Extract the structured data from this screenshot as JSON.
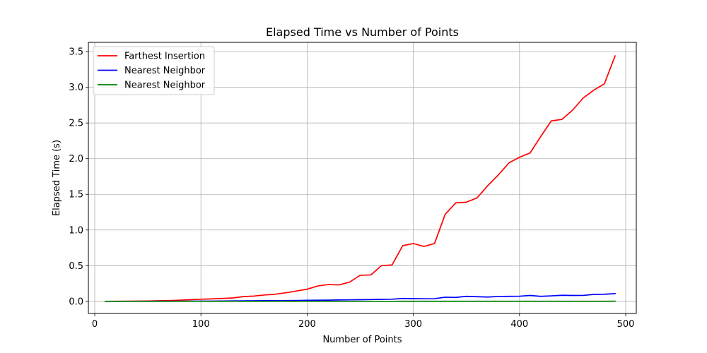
{
  "chart_data": {
    "type": "line",
    "title": "Elapsed Time vs Number of Points",
    "xlabel": "Number of Points",
    "ylabel": "Elapsed Time (s)",
    "xlim": [
      -6,
      510
    ],
    "ylim": [
      -0.17,
      3.63
    ],
    "xticks": [
      0,
      100,
      200,
      300,
      400,
      500
    ],
    "yticks": [
      0.0,
      0.5,
      1.0,
      1.5,
      2.0,
      2.5,
      3.0,
      3.5
    ],
    "xtick_labels": [
      "0",
      "100",
      "200",
      "300",
      "400",
      "500"
    ],
    "ytick_labels": [
      "0.0",
      "0.5",
      "1.0",
      "1.5",
      "2.0",
      "2.5",
      "3.0",
      "3.5"
    ],
    "grid": true,
    "legend_position": "top-left",
    "x": [
      10,
      20,
      30,
      40,
      50,
      60,
      70,
      80,
      90,
      100,
      110,
      120,
      130,
      140,
      150,
      160,
      170,
      180,
      190,
      200,
      210,
      220,
      230,
      240,
      250,
      260,
      270,
      280,
      290,
      300,
      310,
      320,
      330,
      340,
      350,
      360,
      370,
      380,
      390,
      400,
      410,
      420,
      430,
      440,
      450,
      460,
      470,
      480,
      490
    ],
    "series": [
      {
        "name": "Farthest Insertion",
        "color": "#ff0000",
        "values": [
          0.0,
          0.001,
          0.002,
          0.003,
          0.005,
          0.008,
          0.011,
          0.016,
          0.023,
          0.03,
          0.034,
          0.04,
          0.048,
          0.066,
          0.074,
          0.089,
          0.1,
          0.12,
          0.145,
          0.17,
          0.215,
          0.235,
          0.23,
          0.27,
          0.365,
          0.37,
          0.5,
          0.51,
          0.78,
          0.81,
          0.77,
          0.81,
          1.22,
          1.38,
          1.39,
          1.45,
          1.62,
          1.77,
          1.94,
          2.02,
          2.08,
          2.31,
          2.53,
          2.55,
          2.68,
          2.85,
          2.96,
          3.05,
          3.44
        ]
      },
      {
        "name": "Nearest Neighbor",
        "color": "#0000ff",
        "values": [
          0.0,
          0.0,
          0.0,
          0.0,
          0.001,
          0.001,
          0.001,
          0.002,
          0.002,
          0.003,
          0.004,
          0.005,
          0.006,
          0.007,
          0.008,
          0.009,
          0.01,
          0.011,
          0.012,
          0.014,
          0.016,
          0.017,
          0.019,
          0.021,
          0.023,
          0.025,
          0.028,
          0.03,
          0.04,
          0.038,
          0.036,
          0.037,
          0.058,
          0.055,
          0.07,
          0.065,
          0.06,
          0.068,
          0.07,
          0.072,
          0.082,
          0.07,
          0.077,
          0.085,
          0.082,
          0.083,
          0.097,
          0.1,
          0.108
        ]
      },
      {
        "name": "Nearest Neighbor",
        "color": "#008000",
        "values": [
          0.0,
          0.0,
          0.0,
          0.0,
          0.0,
          0.0,
          0.0,
          0.0,
          0.0,
          0.0,
          0.0,
          0.0,
          0.0,
          0.0,
          0.0,
          0.0,
          0.0,
          0.0,
          0.0,
          0.0,
          0.0,
          0.0,
          0.0,
          0.0,
          0.0,
          0.0,
          0.0,
          0.0,
          0.001,
          0.001,
          0.001,
          0.001,
          0.001,
          0.001,
          0.001,
          0.001,
          0.001,
          0.001,
          0.001,
          0.001,
          0.001,
          0.001,
          0.001,
          0.001,
          0.001,
          0.001,
          0.001,
          0.001,
          0.002
        ]
      }
    ]
  }
}
